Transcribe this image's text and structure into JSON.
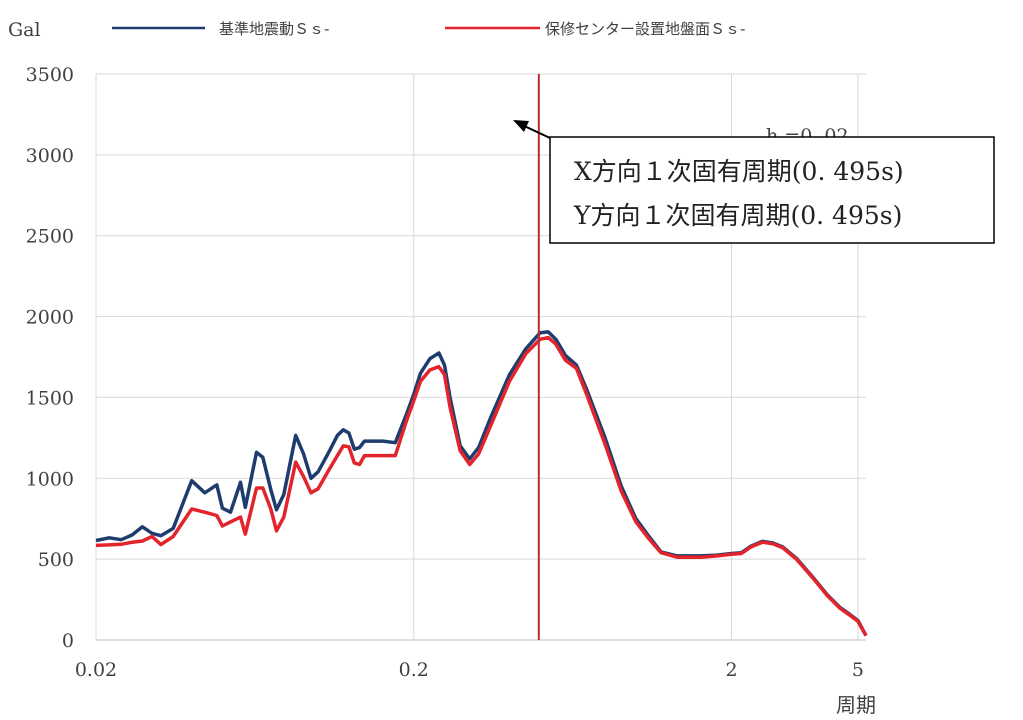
{
  "chart_data": {
    "type": "line",
    "ylabel": "Gal",
    "xlabel": "周期",
    "x_scale": "log",
    "xlim": [
      0.02,
      5.3
    ],
    "ylim": [
      0,
      3500
    ],
    "yticks": [
      0,
      500,
      1000,
      1500,
      2000,
      2500,
      3000,
      3500
    ],
    "xticks": [
      0.02,
      0.2,
      2,
      5
    ],
    "xtick_labels": [
      "0.02",
      "0.2",
      "2",
      "5"
    ],
    "grid": true,
    "legend_position": "top",
    "damping_label": "h =0. 02",
    "vline": {
      "x": 0.495,
      "color": "#c0282d"
    },
    "annotation": {
      "lines": [
        "X方向１次固有周期(0. 495s)",
        "Y方向１次固有周期(0. 495s)"
      ],
      "arrow_target": [
        0.495,
        3200
      ]
    },
    "series": [
      {
        "name": "基準地震動Ｓｓ-",
        "color": "#1f3c6e",
        "points": [
          [
            0.02,
            615
          ],
          [
            0.022,
            632
          ],
          [
            0.024,
            620
          ],
          [
            0.026,
            650
          ],
          [
            0.028,
            700
          ],
          [
            0.03,
            660
          ],
          [
            0.032,
            645
          ],
          [
            0.035,
            690
          ],
          [
            0.04,
            985
          ],
          [
            0.044,
            910
          ],
          [
            0.048,
            960
          ],
          [
            0.05,
            815
          ],
          [
            0.053,
            790
          ],
          [
            0.057,
            975
          ],
          [
            0.059,
            820
          ],
          [
            0.064,
            1160
          ],
          [
            0.067,
            1130
          ],
          [
            0.071,
            930
          ],
          [
            0.074,
            805
          ],
          [
            0.078,
            900
          ],
          [
            0.085,
            1265
          ],
          [
            0.09,
            1150
          ],
          [
            0.095,
            1000
          ],
          [
            0.1,
            1040
          ],
          [
            0.108,
            1160
          ],
          [
            0.115,
            1265
          ],
          [
            0.12,
            1300
          ],
          [
            0.125,
            1280
          ],
          [
            0.13,
            1180
          ],
          [
            0.135,
            1190
          ],
          [
            0.14,
            1230
          ],
          [
            0.16,
            1230
          ],
          [
            0.175,
            1220
          ],
          [
            0.19,
            1400
          ],
          [
            0.2,
            1520
          ],
          [
            0.21,
            1650
          ],
          [
            0.225,
            1740
          ],
          [
            0.24,
            1775
          ],
          [
            0.25,
            1700
          ],
          [
            0.26,
            1500
          ],
          [
            0.28,
            1200
          ],
          [
            0.3,
            1120
          ],
          [
            0.32,
            1190
          ],
          [
            0.35,
            1380
          ],
          [
            0.4,
            1640
          ],
          [
            0.45,
            1800
          ],
          [
            0.5,
            1900
          ],
          [
            0.53,
            1905
          ],
          [
            0.56,
            1860
          ],
          [
            0.6,
            1760
          ],
          [
            0.65,
            1700
          ],
          [
            0.7,
            1550
          ],
          [
            0.8,
            1250
          ],
          [
            0.9,
            950
          ],
          [
            1.0,
            750
          ],
          [
            1.1,
            640
          ],
          [
            1.2,
            545
          ],
          [
            1.35,
            520
          ],
          [
            1.6,
            520
          ],
          [
            1.8,
            525
          ],
          [
            2.0,
            535
          ],
          [
            2.15,
            540
          ],
          [
            2.3,
            580
          ],
          [
            2.5,
            610
          ],
          [
            2.7,
            600
          ],
          [
            2.9,
            575
          ],
          [
            3.2,
            505
          ],
          [
            3.6,
            390
          ],
          [
            4.0,
            280
          ],
          [
            4.4,
            200
          ],
          [
            4.7,
            160
          ],
          [
            5.0,
            120
          ],
          [
            5.3,
            27
          ]
        ]
      },
      {
        "name": "保修センター設置地盤面Ｓｓ-",
        "color": "#e4242b",
        "points": [
          [
            0.02,
            585
          ],
          [
            0.022,
            588
          ],
          [
            0.024,
            592
          ],
          [
            0.026,
            605
          ],
          [
            0.028,
            612
          ],
          [
            0.03,
            640
          ],
          [
            0.032,
            590
          ],
          [
            0.035,
            640
          ],
          [
            0.04,
            810
          ],
          [
            0.044,
            790
          ],
          [
            0.048,
            770
          ],
          [
            0.05,
            705
          ],
          [
            0.053,
            730
          ],
          [
            0.057,
            760
          ],
          [
            0.059,
            655
          ],
          [
            0.064,
            940
          ],
          [
            0.067,
            940
          ],
          [
            0.071,
            810
          ],
          [
            0.074,
            675
          ],
          [
            0.078,
            760
          ],
          [
            0.085,
            1100
          ],
          [
            0.09,
            1010
          ],
          [
            0.095,
            910
          ],
          [
            0.1,
            935
          ],
          [
            0.108,
            1050
          ],
          [
            0.115,
            1140
          ],
          [
            0.12,
            1200
          ],
          [
            0.125,
            1195
          ],
          [
            0.13,
            1095
          ],
          [
            0.135,
            1085
          ],
          [
            0.14,
            1140
          ],
          [
            0.16,
            1140
          ],
          [
            0.175,
            1140
          ],
          [
            0.19,
            1360
          ],
          [
            0.2,
            1480
          ],
          [
            0.21,
            1600
          ],
          [
            0.225,
            1670
          ],
          [
            0.24,
            1690
          ],
          [
            0.25,
            1640
          ],
          [
            0.26,
            1440
          ],
          [
            0.28,
            1170
          ],
          [
            0.3,
            1085
          ],
          [
            0.32,
            1150
          ],
          [
            0.35,
            1330
          ],
          [
            0.4,
            1600
          ],
          [
            0.45,
            1770
          ],
          [
            0.5,
            1860
          ],
          [
            0.53,
            1870
          ],
          [
            0.56,
            1830
          ],
          [
            0.6,
            1730
          ],
          [
            0.65,
            1680
          ],
          [
            0.7,
            1520
          ],
          [
            0.8,
            1210
          ],
          [
            0.9,
            920
          ],
          [
            1.0,
            730
          ],
          [
            1.1,
            625
          ],
          [
            1.2,
            540
          ],
          [
            1.35,
            512
          ],
          [
            1.6,
            512
          ],
          [
            1.8,
            520
          ],
          [
            2.0,
            530
          ],
          [
            2.15,
            535
          ],
          [
            2.3,
            575
          ],
          [
            2.5,
            605
          ],
          [
            2.7,
            595
          ],
          [
            2.9,
            570
          ],
          [
            3.2,
            500
          ],
          [
            3.6,
            385
          ],
          [
            4.0,
            275
          ],
          [
            4.4,
            195
          ],
          [
            4.7,
            155
          ],
          [
            5.0,
            115
          ],
          [
            5.3,
            27
          ]
        ]
      }
    ]
  }
}
